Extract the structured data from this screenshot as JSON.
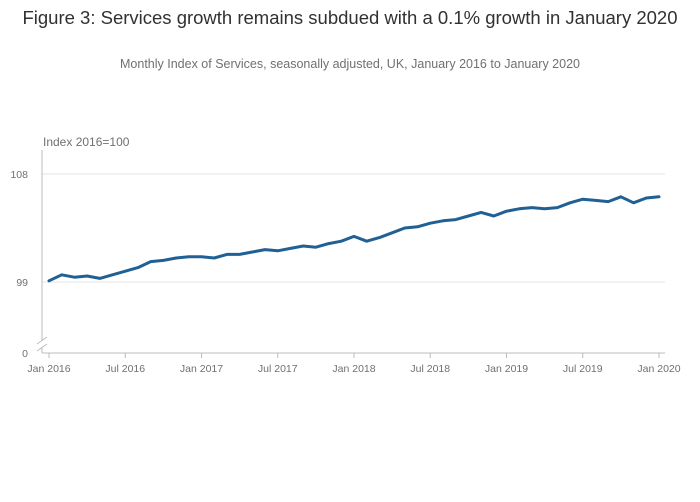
{
  "header": {
    "title": "Figure 3: Services growth remains subdued with a 0.1% growth in January 2020",
    "subtitle": "Monthly Index of Services, seasonally adjusted, UK, January 2016 to January 2020"
  },
  "colors": {
    "series": "#206095",
    "axis": "#bcbcbc",
    "grid": "#e6e6e6",
    "text": "#707071"
  },
  "chart_data": {
    "type": "line",
    "ylabel": "Index 2016=100",
    "xlabel": "",
    "ylim": [
      0,
      108
    ],
    "axis_break": true,
    "grid": true,
    "y_ticks": [
      "0",
      "99",
      "108"
    ],
    "x_ticks": [
      "Jan 2016",
      "Jul 2016",
      "Jan 2017",
      "Jul 2017",
      "Jan 2018",
      "Jul 2018",
      "Jan 2019",
      "Jul 2019",
      "Jan 2020"
    ],
    "series": [
      {
        "x": [
          "2016-01",
          "2016-02",
          "2016-03",
          "2016-04",
          "2016-05",
          "2016-06",
          "2016-07",
          "2016-08",
          "2016-09",
          "2016-10",
          "2016-11",
          "2016-12",
          "2017-01",
          "2017-02",
          "2017-03",
          "2017-04",
          "2017-05",
          "2017-06",
          "2017-07",
          "2017-08",
          "2017-09",
          "2017-10",
          "2017-11",
          "2017-12",
          "2018-01",
          "2018-02",
          "2018-03",
          "2018-04",
          "2018-05",
          "2018-06",
          "2018-07",
          "2018-08",
          "2018-09",
          "2018-10",
          "2018-11",
          "2018-12",
          "2019-01",
          "2019-02",
          "2019-03",
          "2019-04",
          "2019-05",
          "2019-06",
          "2019-07",
          "2019-08",
          "2019-09",
          "2019-10",
          "2019-11",
          "2019-12",
          "2020-01"
        ],
        "values": [
          99.1,
          99.6,
          99.4,
          99.5,
          99.3,
          99.6,
          99.9,
          100.2,
          100.7,
          100.8,
          101.0,
          101.1,
          101.1,
          101.0,
          101.3,
          101.3,
          101.5,
          101.7,
          101.6,
          101.8,
          102.0,
          101.9,
          102.2,
          102.4,
          102.8,
          102.4,
          102.7,
          103.1,
          103.5,
          103.6,
          103.9,
          104.1,
          104.2,
          104.5,
          104.8,
          104.5,
          104.9,
          105.1,
          105.2,
          105.1,
          105.2,
          105.6,
          105.9,
          105.8,
          105.7,
          106.1,
          105.6,
          106.0,
          106.1
        ]
      }
    ]
  }
}
